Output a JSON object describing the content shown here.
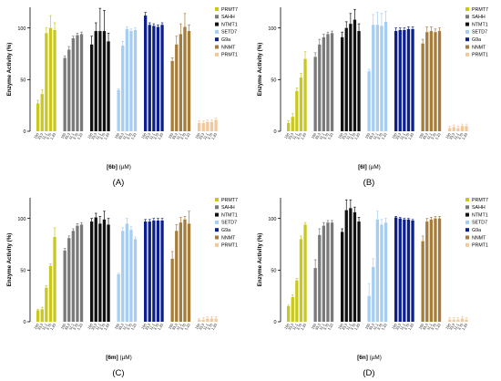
{
  "chart_data": [
    {
      "type": "bar",
      "panel_label": "(A)",
      "xlabel_prefix": "[6b]",
      "xlabel_unit": "(µM)",
      "ylabel": "Enzyme Activity (%)",
      "ylim": [
        0,
        120
      ],
      "yticks": [
        0,
        50,
        100
      ],
      "concentrations": [
        "100",
        "33.3",
        "11.1",
        "3.70",
        "1.23"
      ],
      "legend_position": "top-right",
      "series": [
        {
          "name": "PRMT7",
          "color": "#c8c81e",
          "values": [
            27,
            36,
            95,
            100,
            98
          ],
          "errors": [
            3,
            4,
            5,
            12,
            7
          ]
        },
        {
          "name": "SAHH",
          "color": "#7a7a7a",
          "values": [
            71,
            79,
            90,
            93,
            94
          ],
          "errors": [
            2,
            3,
            2,
            2,
            2
          ]
        },
        {
          "name": "NTMT1",
          "color": "#111111",
          "values": [
            84,
            97,
            97,
            97,
            87
          ],
          "errors": [
            8,
            8,
            22,
            20,
            8
          ]
        },
        {
          "name": "SETD7",
          "color": "#a6cef3",
          "values": [
            40,
            83,
            99,
            97,
            98
          ],
          "errors": [
            1,
            4,
            2,
            2,
            2
          ]
        },
        {
          "name": "G9a",
          "color": "#0b1f8f",
          "values": [
            112,
            103,
            102,
            101,
            103
          ],
          "errors": [
            3,
            2,
            2,
            2,
            2
          ]
        },
        {
          "name": "NNMT",
          "color": "#a67c3a",
          "values": [
            68,
            84,
            94,
            101,
            97
          ],
          "errors": [
            3,
            8,
            10,
            13,
            6
          ]
        },
        {
          "name": "PRMT1",
          "color": "#f2c89a",
          "values": [
            8,
            8,
            9,
            9,
            11
          ],
          "errors": [
            2,
            2,
            2,
            2,
            2
          ]
        }
      ]
    },
    {
      "type": "bar",
      "panel_label": "(B)",
      "xlabel_prefix": "[6l]",
      "xlabel_unit": "(µM)",
      "ylabel": "Enzyme Activity (%)",
      "ylim": [
        0,
        120
      ],
      "yticks": [
        0,
        50,
        100
      ],
      "concentrations": [
        "100",
        "33.3",
        "11.1",
        "3.70",
        "1.23"
      ],
      "legend_position": "top-right",
      "series": [
        {
          "name": "PRMT7",
          "color": "#c8c81e",
          "values": [
            8,
            14,
            39,
            52,
            70
          ],
          "errors": [
            2,
            3,
            3,
            4,
            7
          ]
        },
        {
          "name": "SAHH",
          "color": "#7a7a7a",
          "values": [
            72,
            84,
            91,
            94,
            95
          ],
          "errors": [
            4,
            5,
            3,
            2,
            2
          ]
        },
        {
          "name": "NTMT1",
          "color": "#111111",
          "values": [
            91,
            100,
            104,
            108,
            97
          ],
          "errors": [
            5,
            6,
            10,
            10,
            7
          ]
        },
        {
          "name": "SETD7",
          "color": "#a6cef3",
          "values": [
            58,
            103,
            103,
            102,
            106
          ],
          "errors": [
            2,
            10,
            12,
            12,
            10
          ]
        },
        {
          "name": "G9a",
          "color": "#0b1f8f",
          "values": [
            97,
            98,
            98,
            99,
            99
          ],
          "errors": [
            3,
            2,
            2,
            2,
            2
          ]
        },
        {
          "name": "NNMT",
          "color": "#a67c3a",
          "values": [
            85,
            96,
            97,
            96,
            97
          ],
          "errors": [
            4,
            5,
            4,
            3,
            3
          ]
        },
        {
          "name": "PRMT1",
          "color": "#f2c89a",
          "values": [
            3,
            4,
            3,
            5,
            5
          ],
          "errors": [
            2,
            2,
            2,
            2,
            2
          ]
        }
      ]
    },
    {
      "type": "bar",
      "panel_label": "(C)",
      "xlabel_prefix": "[6m]",
      "xlabel_unit": "(µM)",
      "ylabel": "Enzyme Activity (%)",
      "ylim": [
        0,
        120
      ],
      "yticks": [
        0,
        50,
        100
      ],
      "concentrations": [
        "100",
        "33.3",
        "11.1",
        "3.70",
        "1.23"
      ],
      "legend_position": "top-right",
      "series": [
        {
          "name": "PRMT7",
          "color": "#c8c81e",
          "values": [
            11,
            12,
            33,
            54,
            82
          ],
          "errors": [
            1,
            2,
            2,
            2,
            9
          ]
        },
        {
          "name": "SAHH",
          "color": "#7a7a7a",
          "values": [
            69,
            81,
            88,
            93,
            94
          ],
          "errors": [
            2,
            2,
            2,
            2,
            2
          ]
        },
        {
          "name": "NTMT1",
          "color": "#111111",
          "values": [
            97,
            101,
            95,
            99,
            94
          ],
          "errors": [
            3,
            4,
            7,
            8,
            6
          ]
        },
        {
          "name": "SETD7",
          "color": "#a6cef3",
          "values": [
            46,
            88,
            95,
            89,
            80
          ],
          "errors": [
            1,
            3,
            5,
            3,
            2
          ]
        },
        {
          "name": "G9a",
          "color": "#0b1f8f",
          "values": [
            97,
            97,
            98,
            98,
            98
          ],
          "errors": [
            2,
            2,
            2,
            2,
            2
          ]
        },
        {
          "name": "NNMT",
          "color": "#a67c3a",
          "values": [
            61,
            88,
            96,
            99,
            95
          ],
          "errors": [
            7,
            6,
            5,
            3,
            12
          ]
        },
        {
          "name": "PRMT1",
          "color": "#f2c89a",
          "values": [
            2,
            2,
            3,
            3,
            3
          ],
          "errors": [
            1,
            2,
            2,
            2,
            2
          ]
        }
      ]
    },
    {
      "type": "bar",
      "panel_label": "(D)",
      "xlabel_prefix": "[6n]",
      "xlabel_unit": "(µM)",
      "ylabel": "Enzyme Activity (%)",
      "ylim": [
        0,
        120
      ],
      "yticks": [
        0,
        50,
        100
      ],
      "concentrations": [
        "100",
        "33.3",
        "11.1",
        "3.70",
        "1.23"
      ],
      "legend_position": "top-right",
      "series": [
        {
          "name": "PRMT7",
          "color": "#c8c81e",
          "values": [
            15,
            24,
            40,
            80,
            94
          ],
          "errors": [
            1,
            2,
            2,
            3,
            2
          ]
        },
        {
          "name": "SAHH",
          "color": "#7a7a7a",
          "values": [
            52,
            84,
            93,
            96,
            96
          ],
          "errors": [
            8,
            6,
            3,
            2,
            2
          ]
        },
        {
          "name": "NTMT1",
          "color": "#111111",
          "values": [
            87,
            108,
            110,
            106,
            97
          ],
          "errors": [
            3,
            10,
            8,
            5,
            4
          ]
        },
        {
          "name": "SETD7",
          "color": "#a6cef3",
          "values": [
            25,
            53,
            99,
            94,
            96
          ],
          "errors": [
            12,
            8,
            8,
            5,
            4
          ]
        },
        {
          "name": "G9a",
          "color": "#0b1f8f",
          "values": [
            101,
            100,
            99,
            99,
            98
          ],
          "errors": [
            1,
            1,
            1,
            1,
            1
          ]
        },
        {
          "name": "NNMT",
          "color": "#a67c3a",
          "values": [
            78,
            97,
            99,
            100,
            100
          ],
          "errors": [
            5,
            3,
            2,
            2,
            2
          ]
        },
        {
          "name": "PRMT1",
          "color": "#f2c89a",
          "values": [
            2,
            2,
            2,
            3,
            2
          ],
          "errors": [
            2,
            2,
            2,
            2,
            2
          ]
        }
      ]
    }
  ]
}
